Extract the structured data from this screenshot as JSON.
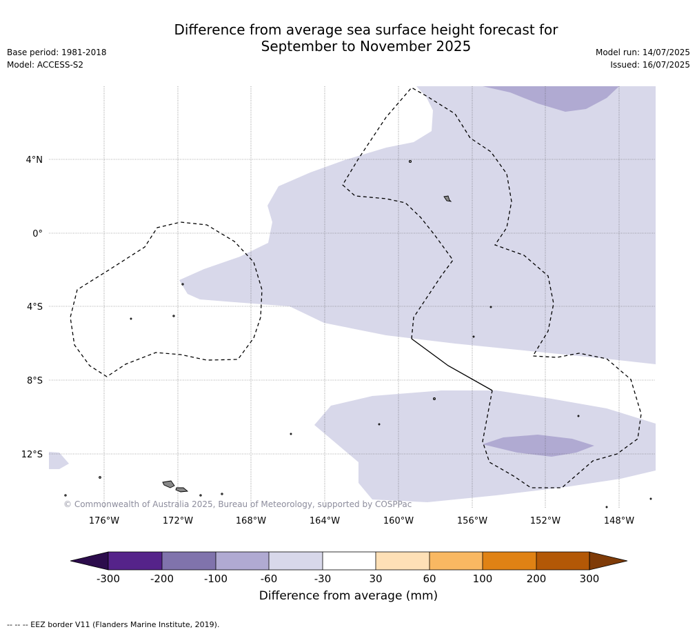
{
  "title": {
    "line1": "Difference from average sea surface height forecast for",
    "line2": "September to November 2025"
  },
  "meta_left": {
    "base_period": "Base period: 1981-2018",
    "model": "Model: ACCESS-S2"
  },
  "meta_right": {
    "model_run": "Model run: 14/07/2025",
    "issued": "Issued: 16/07/2025"
  },
  "map": {
    "lat_labels": [
      "4°N",
      "0°",
      "4°S",
      "8°S",
      "12°S"
    ],
    "lon_labels": [
      "176°W",
      "172°W",
      "168°W",
      "164°W",
      "160°W",
      "156°W",
      "152°W",
      "148°W"
    ],
    "copyright": "© Commonwealth of Australia 2025, Bureau of Meteorology, supported by COSPPac",
    "colors": {
      "neg_30_60": "#d8d8ea",
      "neg_60_100": "#b0aad2",
      "land": "#888888",
      "eez_border": "#000000"
    }
  },
  "colorbar": {
    "ticks": [
      "-300",
      "-200",
      "-100",
      "-60",
      "-30",
      "30",
      "60",
      "100",
      "200",
      "300"
    ],
    "bin_colors": [
      "#2c0c4c",
      "#55238a",
      "#8073ac",
      "#b0aad2",
      "#d8d8ea",
      "#ffffff",
      "#fee0b6",
      "#f9b862",
      "#e08214",
      "#b35806",
      "#7f3b08"
    ],
    "label": "Difference from average (mm)"
  },
  "footnote": "--  --  -- EEZ border V11 (Flanders Marine Institute, 2019)."
}
